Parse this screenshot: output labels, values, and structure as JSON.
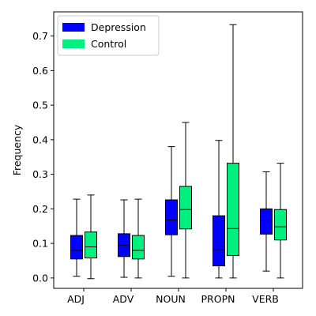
{
  "chart_data": {
    "type": "boxplot",
    "ylabel": "Frequency",
    "xlabel": "",
    "ylim": [
      -0.03,
      0.77
    ],
    "yticks": [
      0.0,
      0.1,
      0.2,
      0.3,
      0.4,
      0.5,
      0.6,
      0.7
    ],
    "categories": [
      "ADJ",
      "ADV",
      "NOUN",
      "PROPN",
      "VERB"
    ],
    "legend": {
      "position": "top-left",
      "entries": [
        "Depression",
        "Control"
      ]
    },
    "grid": false,
    "series": [
      {
        "name": "Depression",
        "color": "#0000ff",
        "boxes": [
          {
            "whislo": 0.005,
            "q1": 0.055,
            "med": 0.08,
            "q3": 0.123,
            "whishi": 0.228
          },
          {
            "whislo": 0.002,
            "q1": 0.062,
            "med": 0.095,
            "q3": 0.128,
            "whishi": 0.226
          },
          {
            "whislo": 0.005,
            "q1": 0.125,
            "med": 0.168,
            "q3": 0.226,
            "whishi": 0.38
          },
          {
            "whislo": 0.0,
            "q1": 0.035,
            "med": 0.082,
            "q3": 0.18,
            "whishi": 0.398
          },
          {
            "whislo": 0.02,
            "q1": 0.127,
            "med": 0.165,
            "q3": 0.2,
            "whishi": 0.307
          }
        ]
      },
      {
        "name": "Control",
        "color": "#00f080",
        "boxes": [
          {
            "whislo": -0.002,
            "q1": 0.058,
            "med": 0.09,
            "q3": 0.133,
            "whishi": 0.24
          },
          {
            "whislo": 0.0,
            "q1": 0.055,
            "med": 0.08,
            "q3": 0.123,
            "whishi": 0.228
          },
          {
            "whislo": 0.0,
            "q1": 0.142,
            "med": 0.198,
            "q3": 0.265,
            "whishi": 0.45
          },
          {
            "whislo": 0.0,
            "q1": 0.065,
            "med": 0.143,
            "q3": 0.332,
            "whishi": 0.733
          },
          {
            "whislo": 0.0,
            "q1": 0.11,
            "med": 0.148,
            "q3": 0.198,
            "whishi": 0.332
          }
        ]
      }
    ]
  }
}
